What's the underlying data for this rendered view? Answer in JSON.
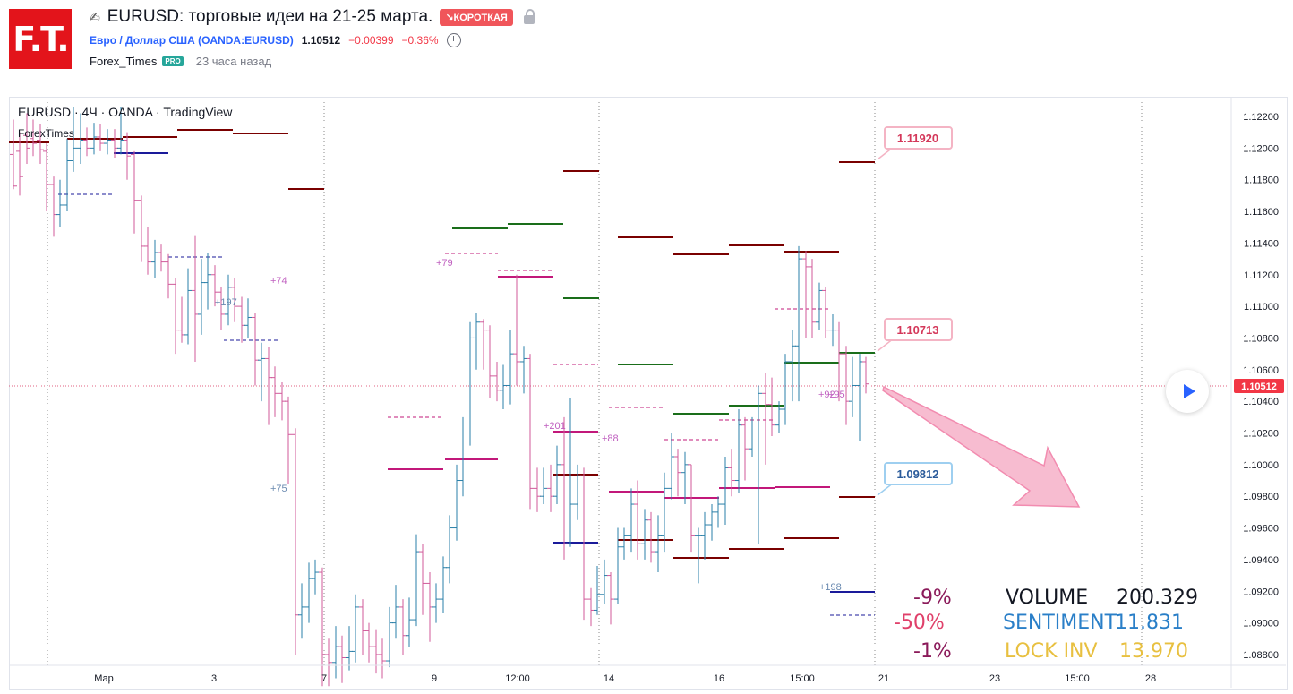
{
  "header": {
    "logo_text": "F.T.",
    "title": "EURUSD: торговые идеи на 21-25 марта.",
    "badge": "↘КОРОТКАЯ",
    "symbol_name": "Евро / Доллар США (OANDA:EURUSD)",
    "price": "1.10512",
    "change": "−0.00399",
    "change_pct": "−0.36%",
    "author": "Forex_Times",
    "author_badge": "PRO",
    "time_ago": "23 часа назад"
  },
  "chart": {
    "symbol_line": "EURUSD · 4Ч · OANDA · TradingView",
    "indicator": "ForexTimes",
    "last_price_label": "1.10512",
    "price_axis": [
      "1.12200",
      "1.12000",
      "1.11800",
      "1.11600",
      "1.11400",
      "1.11200",
      "1.11000",
      "1.10800",
      "1.10600",
      "1.10400",
      "1.10200",
      "1.10000",
      "1.09800",
      "1.09600",
      "1.09400",
      "1.09200",
      "1.09000",
      "1.08800"
    ],
    "time_axis": [
      "Мар",
      "3",
      "7",
      "9",
      "12:00",
      "14",
      "16",
      "15:00",
      "21",
      "23",
      "15:00",
      "28"
    ],
    "callouts": [
      {
        "text": "1.11920",
        "type": "pink"
      },
      {
        "text": "1.10713",
        "type": "pink"
      },
      {
        "text": "1.09812",
        "type": "blue"
      }
    ],
    "annotations": [
      "+74",
      "+197",
      "+75",
      "+79",
      "+201",
      "+88",
      "+92",
      "+95",
      "+198"
    ],
    "stats": {
      "pct_1": "-9%",
      "pct_2": "-50%",
      "pct_3": "-1%",
      "volume_label": "VOLUME",
      "volume_value": "200.329",
      "sentiment_label": "SENTIMENT",
      "sentiment_value": "11.831",
      "lockinv_label": "LOCK INV",
      "lockinv_value": "13.970"
    },
    "colors": {
      "bull": "#2a7fa8",
      "bear": "#d05a9a",
      "resistance": "#7a0000",
      "support_green": "#1a6e1a",
      "navy": "#1a1a9a",
      "magenta": "#c2187a",
      "arrow": "#f4a6c0"
    }
  }
}
